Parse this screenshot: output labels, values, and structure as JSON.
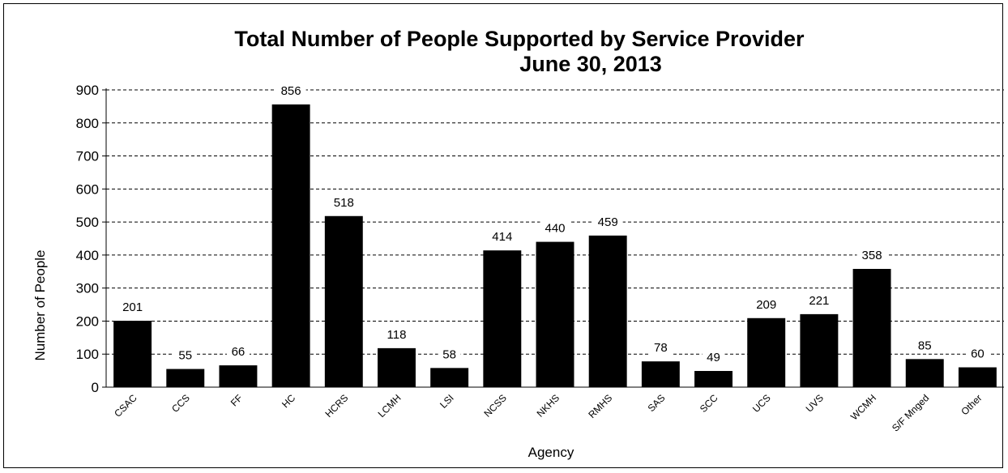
{
  "chart_data": {
    "type": "bar",
    "title": "Total Number of People Supported by Service Provider",
    "subtitle": "June 30, 2013",
    "xlabel": "Agency",
    "ylabel": "Number of People",
    "ylim": [
      0,
      900
    ],
    "yticks": [
      "0",
      "100",
      "200",
      "300",
      "400",
      "500",
      "600",
      "700",
      "800",
      "900"
    ],
    "grid": true,
    "categories": [
      "CSAC",
      "CCS",
      "FF",
      "HC",
      "HCRS",
      "LCMH",
      "LSI",
      "NCSS",
      "NKHS",
      "RMHS",
      "SAS",
      "SCC",
      "UCS",
      "UVS",
      "WCMH",
      "S/F Mnged",
      "Other"
    ],
    "values": [
      201,
      55,
      66,
      856,
      518,
      118,
      58,
      414,
      440,
      459,
      78,
      49,
      209,
      221,
      358,
      85,
      60
    ],
    "value_labels": [
      "201",
      "55",
      "66",
      "856",
      "518",
      "118",
      "58",
      "414",
      "440",
      "459",
      "78",
      "49",
      "209",
      "221",
      "358",
      "85",
      "60"
    ],
    "bar_color": "#000000",
    "grid_color": "#000000"
  }
}
